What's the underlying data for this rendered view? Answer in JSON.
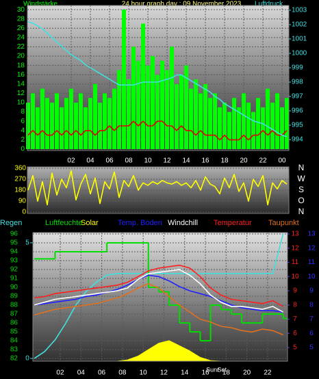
{
  "chart_data": [
    {
      "type": "line",
      "title": "24 hour graph day : 09 November 2023",
      "y_label": "Windstärke",
      "y2_label": "Luftdruck",
      "x": [
        -2.5,
        -2,
        -1.5,
        -1,
        -0.5,
        0,
        0.5,
        1,
        1.5,
        2,
        2.5,
        3,
        3.5,
        4,
        4.5,
        5,
        5.5,
        6,
        6.5,
        7,
        7.5,
        8,
        8.5,
        9,
        9.5,
        10,
        10.5,
        11,
        11.5,
        12,
        12.5,
        13,
        13.5,
        14,
        14.5,
        15,
        15.5,
        16,
        16.5,
        17,
        17.5,
        18,
        18.5,
        19,
        19.5,
        20,
        20.5,
        21,
        21.5,
        22,
        22.5,
        23,
        23.5,
        24,
        24.5
      ],
      "xlim": [
        -2.57,
        24.71
      ],
      "xticks": [
        {
          "value": 2,
          "label": "02"
        },
        {
          "value": 4,
          "label": "04"
        },
        {
          "value": 6,
          "label": "06"
        },
        {
          "value": 8,
          "label": "08"
        },
        10,
        12,
        14,
        16,
        18,
        20,
        22,
        {
          "value": 24,
          "label": "00"
        }
      ],
      "ylim": [
        -0.3,
        30.9
      ],
      "yticks": [
        0,
        2,
        4,
        6,
        8,
        10,
        12,
        14,
        16,
        18,
        20,
        22,
        24,
        26,
        28,
        30
      ],
      "y2lim": [
        993.24,
        1003.33
      ],
      "y2ticks": [
        994,
        995,
        996,
        997,
        998,
        999,
        1000,
        1001,
        1002,
        1003
      ],
      "grid": true,
      "series": [
        {
          "type": "bar",
          "color": "#00ff00",
          "values": [
            10,
            12,
            9,
            13,
            11,
            10,
            12,
            9,
            11,
            13,
            10,
            12,
            9,
            11,
            14,
            10,
            12,
            11,
            13,
            17,
            30,
            15,
            22,
            19,
            27,
            18,
            20,
            16,
            19,
            17,
            22,
            14,
            16,
            18,
            13,
            15,
            12,
            14,
            11,
            12,
            9,
            10,
            8,
            11,
            9,
            12,
            10,
            8,
            11,
            9,
            13,
            10,
            12,
            9,
            11
          ]
        },
        {
          "color": "#e00000",
          "values": [
            3,
            4,
            3,
            4,
            3,
            3,
            4,
            3,
            4,
            3,
            4,
            3,
            4,
            4,
            3,
            4,
            4,
            5,
            4,
            5,
            5,
            5,
            6,
            5,
            6,
            5,
            5,
            6,
            6,
            5,
            5,
            4,
            5,
            4,
            4,
            3,
            4,
            3,
            3,
            3,
            2,
            3,
            2,
            2,
            2,
            3,
            2,
            3,
            3,
            4,
            3,
            4,
            3,
            3,
            4
          ]
        },
        {
          "color": "#40e0e0",
          "axis": "y2",
          "values": [
            1002.2,
            1002.1,
            1001.9,
            1001.7,
            1001.4,
            1001.1,
            1000.8,
            1000.5,
            1000.2,
            999.9,
            999.7,
            999.5,
            999.2,
            999.0,
            998.8,
            998.6,
            998.4,
            998.2,
            998.0,
            997.8,
            997.8,
            997.8,
            997.8,
            997.9,
            998.0,
            998.0,
            998.0,
            998.0,
            998.1,
            998.2,
            998.3,
            998.5,
            998.5,
            998.3,
            998.1,
            997.9,
            997.7,
            997.5,
            997.3,
            997.0,
            996.8,
            996.5,
            996.3,
            996.1,
            995.9,
            995.7,
            995.5,
            995.3,
            995.2,
            995.1,
            994.9,
            994.7,
            994.5,
            994.3,
            994.2
          ]
        }
      ]
    },
    {
      "type": "line",
      "x": [
        -2.5,
        -2,
        -1.5,
        -1,
        -0.5,
        0,
        0.5,
        1,
        1.5,
        2,
        2.5,
        3,
        3.5,
        4,
        4.5,
        5,
        5.5,
        6,
        6.5,
        7,
        7.5,
        8,
        8.5,
        9,
        9.5,
        10,
        10.5,
        11,
        11.5,
        12,
        12.5,
        13,
        13.5,
        14,
        14.5,
        15,
        15.5,
        16,
        16.5,
        17,
        17.5,
        18,
        18.5,
        19,
        19.5,
        20,
        20.5,
        21,
        21.5,
        22,
        22.5,
        23,
        23.5,
        24,
        24.5
      ],
      "xlim": [
        -2.57,
        24.71
      ],
      "ylim": [
        -11,
        371
      ],
      "yticks": [
        0,
        90,
        180,
        270,
        360
      ],
      "direction_labels": [
        "N",
        "O",
        "S",
        "W",
        "N"
      ],
      "grid": true,
      "series": [
        {
          "color": "#ffff00",
          "values": [
            180,
            300,
            90,
            250,
            60,
            320,
            140,
            270,
            200,
            340,
            100,
            230,
            310,
            150,
            280,
            70,
            250,
            190,
            330,
            120,
            260,
            210,
            300,
            180,
            240,
            220,
            250,
            230,
            260,
            240,
            230,
            250,
            220,
            240,
            200,
            260,
            180,
            290,
            230,
            210,
            150,
            280,
            200,
            310,
            170,
            240,
            90,
            270,
            210,
            300,
            60,
            240,
            190,
            260,
            230
          ]
        }
      ]
    },
    {
      "type": "line",
      "x": [
        -0.5,
        0.5,
        1.5,
        2.5,
        3.5,
        4.5,
        5.5,
        6.5,
        7.5,
        8.5,
        9.5,
        10.5,
        11.5,
        12.5,
        13.5,
        14.5,
        15.5,
        16.5,
        17.5,
        18.5,
        19.5,
        20.5,
        21.5,
        22.5,
        23.5
      ],
      "xlim": [
        -0.64,
        23.92
      ],
      "xticks": [
        {
          "value": 2,
          "label": "02"
        },
        {
          "value": 4,
          "label": "04"
        },
        {
          "value": 6,
          "label": "06"
        },
        {
          "value": 8,
          "label": "08"
        },
        10,
        12,
        14,
        16,
        18,
        20,
        22
      ],
      "ylim": [
        81.7,
        96.15
      ],
      "yticks": [
        82,
        83,
        84,
        85,
        86,
        87,
        88,
        89,
        90,
        91,
        92,
        93,
        94,
        95,
        96
      ],
      "y2lim": [
        4.04,
        13.1
      ],
      "y2ticks": [
        5,
        6,
        7,
        8,
        9,
        10,
        11,
        12,
        13
      ],
      "y3lim": [
        4.04,
        13.1
      ],
      "y3ticks": [
        5,
        6,
        7,
        8,
        9,
        10,
        11,
        12,
        13
      ],
      "rainlim": [
        -0.12,
        5.44
      ],
      "rainticks": [
        0,
        5
      ],
      "solarlim": [
        0,
        1000
      ],
      "grid": true,
      "annotations": [
        {
          "text": "Sunr",
          "x": 16.7
        },
        {
          "text": "Set",
          "x": 17.6
        }
      ],
      "series": [
        {
          "name": "Regen",
          "color": "#40e0e0",
          "axis": "rain",
          "values": [
            0,
            0.3,
            0.8,
            1.5,
            2.3,
            2.9,
            3.3,
            3.6,
            3.67,
            3.67,
            3.67,
            3.67,
            3.67,
            3.67,
            3.67,
            3.67,
            3.67,
            3.67,
            3.67,
            3.67,
            3.67,
            3.67,
            3.67,
            3.67,
            5.4
          ]
        },
        {
          "name": "Luftfeuchte",
          "color": "#00dd00",
          "type": "step",
          "values": [
            93.2,
            93.2,
            94,
            94,
            94,
            94,
            94,
            95,
            95,
            95,
            95,
            90,
            89.5,
            88,
            86,
            85,
            84,
            88,
            87.5,
            87,
            86,
            86,
            87,
            87,
            86.5
          ]
        },
        {
          "name": "Solar",
          "color": "#ffff00",
          "type": "area",
          "axis": "solar",
          "values": [
            0,
            0,
            0,
            0,
            0,
            0,
            0,
            0,
            0,
            10,
            40,
            90,
            140,
            160,
            120,
            80,
            30,
            5,
            0,
            0,
            0,
            0,
            0,
            0,
            0
          ]
        },
        {
          "name": "Temp. Boden",
          "color": "#2020ff",
          "axis": "y3",
          "values": [
            8.0,
            8.1,
            8.2,
            8.3,
            8.4,
            8.6,
            8.7,
            8.9,
            9.1,
            9.4,
            9.8,
            10.1,
            10.0,
            9.7,
            9.3,
            9.0,
            8.8,
            8.6,
            8.3,
            8.0,
            7.8,
            7.7,
            7.6,
            7.6,
            7.5
          ]
        },
        {
          "name": "Windchill",
          "color": "#ffffff",
          "axis": "y2",
          "values": [
            8.0,
            8.2,
            8.4,
            8.5,
            8.6,
            8.7,
            8.8,
            8.9,
            9.0,
            9.2,
            9.8,
            10.2,
            10.3,
            10.4,
            10.5,
            10.1,
            9.5,
            8.7,
            8.2,
            7.9,
            7.9,
            7.8,
            7.7,
            7.9,
            7.5
          ]
        },
        {
          "name": "Temperatur",
          "color": "#ff2020",
          "axis": "y2",
          "values": [
            8.5,
            8.6,
            8.8,
            8.9,
            9.0,
            9.1,
            9.2,
            9.3,
            9.4,
            9.6,
            10.0,
            10.4,
            10.6,
            10.7,
            10.8,
            10.6,
            10.0,
            9.2,
            8.7,
            8.4,
            8.3,
            8.2,
            8.1,
            8.3,
            7.9
          ]
        },
        {
          "name": "Taupunkt",
          "color": "#e07020",
          "axis": "y2",
          "values": [
            7.3,
            7.5,
            7.7,
            7.8,
            7.9,
            8.0,
            8.1,
            8.3,
            8.5,
            8.8,
            9.2,
            9.5,
            9.2,
            8.6,
            8.0,
            7.5,
            7.0,
            6.8,
            6.5,
            6.4,
            6.2,
            6.1,
            6.3,
            6.2,
            5.9
          ]
        }
      ]
    }
  ]
}
